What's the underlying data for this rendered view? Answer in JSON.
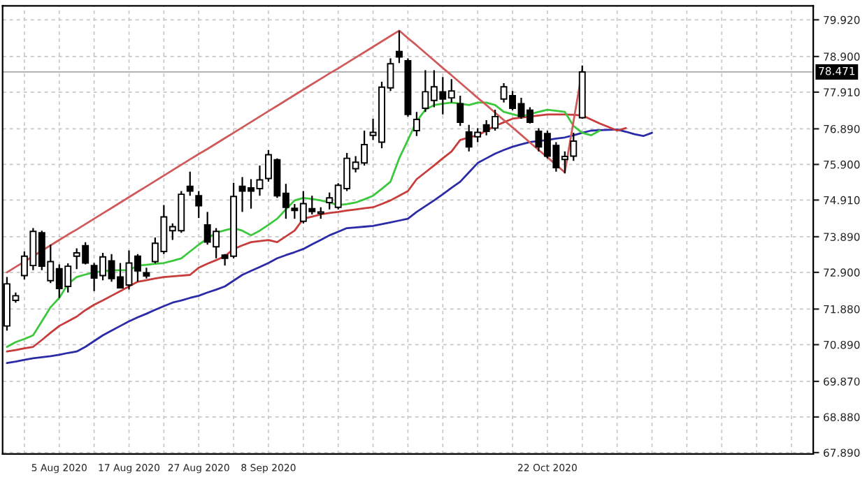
{
  "chart_data": {
    "type": "candlestick",
    "categories": [
      null,
      null,
      null,
      null,
      null,
      null,
      "5 Aug 2020",
      null,
      null,
      null,
      null,
      null,
      null,
      null,
      "17 Aug 2020",
      null,
      null,
      null,
      null,
      null,
      null,
      null,
      "27 Aug 2020",
      null,
      null,
      null,
      null,
      null,
      null,
      null,
      "8 Sep 2020",
      null,
      null,
      null,
      null,
      null,
      null,
      null,
      null,
      null,
      null,
      null,
      null,
      null,
      null,
      null,
      null,
      null,
      null,
      null,
      null,
      null,
      null,
      null,
      null,
      null,
      null,
      null,
      null,
      null,
      null,
      null,
      "22 Oct 2020",
      null,
      null,
      null,
      null,
      null,
      null,
      null,
      null,
      null,
      null,
      null,
      null,
      null,
      null,
      null,
      null,
      null,
      null,
      null,
      null,
      null,
      null,
      null,
      null,
      null,
      null,
      null,
      null,
      null,
      null
    ],
    "ohlc": [
      [
        71.41,
        72.77,
        71.28,
        72.58
      ],
      [
        72.12,
        72.34,
        72.06,
        72.25
      ],
      [
        72.81,
        73.48,
        72.7,
        73.35
      ],
      [
        73.09,
        74.13,
        72.96,
        74.04
      ],
      [
        74.0,
        74.06,
        72.96,
        73.07
      ],
      [
        72.67,
        73.67,
        72.6,
        73.2
      ],
      [
        73.0,
        73.12,
        72.19,
        72.45
      ],
      [
        72.51,
        73.15,
        72.34,
        73.07
      ],
      [
        73.35,
        73.57,
        72.99,
        73.44
      ],
      [
        73.64,
        73.74,
        73.12,
        73.16
      ],
      [
        73.09,
        73.16,
        72.38,
        72.74
      ],
      [
        72.81,
        73.44,
        72.68,
        73.33
      ],
      [
        73.22,
        73.41,
        72.64,
        72.73
      ],
      [
        72.77,
        73.16,
        72.45,
        72.47
      ],
      [
        72.55,
        73.51,
        72.42,
        73.16
      ],
      [
        73.35,
        73.41,
        72.64,
        72.94
      ],
      [
        72.89,
        73.03,
        72.73,
        72.8
      ],
      [
        73.2,
        73.87,
        73.15,
        73.71
      ],
      [
        73.48,
        74.77,
        73.41,
        74.44
      ],
      [
        74.06,
        74.26,
        73.8,
        74.17
      ],
      [
        74.06,
        75.16,
        74.0,
        75.07
      ],
      [
        75.29,
        75.7,
        75.03,
        75.16
      ],
      [
        75.03,
        75.16,
        74.41,
        74.75
      ],
      [
        74.22,
        74.58,
        73.67,
        73.74
      ],
      [
        73.61,
        74.13,
        73.29,
        74.04
      ],
      [
        73.38,
        73.41,
        73.09,
        73.29
      ],
      [
        73.35,
        75.39,
        73.29,
        75.01
      ],
      [
        75.29,
        75.55,
        74.58,
        75.16
      ],
      [
        75.25,
        75.49,
        74.67,
        75.16
      ],
      [
        75.23,
        75.87,
        75.03,
        75.47
      ],
      [
        75.51,
        76.3,
        75.42,
        76.17
      ],
      [
        76.03,
        76.07,
        74.97,
        75.03
      ],
      [
        75.1,
        75.36,
        74.39,
        74.71
      ],
      [
        74.68,
        74.8,
        74.39,
        74.62
      ],
      [
        74.32,
        75.16,
        74.26,
        74.81
      ],
      [
        74.67,
        75.03,
        74.51,
        74.59
      ],
      [
        74.54,
        74.71,
        74.39,
        74.58
      ],
      [
        74.84,
        75.12,
        74.65,
        74.97
      ],
      [
        74.71,
        75.38,
        74.65,
        75.32
      ],
      [
        75.23,
        76.22,
        75.16,
        76.07
      ],
      [
        75.78,
        76.13,
        75.68,
        75.96
      ],
      [
        75.94,
        76.84,
        75.87,
        76.45
      ],
      [
        76.71,
        77.17,
        76.58,
        76.79
      ],
      [
        76.52,
        78.2,
        76.35,
        78.05
      ],
      [
        78.03,
        78.85,
        77.94,
        78.7
      ],
      [
        79.04,
        79.62,
        78.72,
        78.89
      ],
      [
        78.78,
        78.85,
        77.23,
        77.29
      ],
      [
        76.84,
        77.36,
        76.69,
        77.15
      ],
      [
        77.46,
        78.52,
        77.36,
        77.92
      ],
      [
        77.68,
        78.52,
        77.49,
        78.06
      ],
      [
        77.92,
        78.33,
        77.29,
        77.72
      ],
      [
        77.75,
        78.27,
        77.62,
        77.94
      ],
      [
        77.59,
        77.81,
        76.97,
        77.07
      ],
      [
        76.8,
        77.0,
        76.26,
        76.39
      ],
      [
        76.67,
        76.91,
        76.52,
        76.79
      ],
      [
        77.0,
        77.13,
        76.71,
        76.82
      ],
      [
        76.91,
        77.42,
        76.84,
        77.23
      ],
      [
        77.72,
        78.16,
        77.62,
        78.06
      ],
      [
        77.81,
        77.94,
        77.41,
        77.46
      ],
      [
        77.59,
        77.75,
        77.17,
        77.23
      ],
      [
        77.41,
        77.49,
        77.04,
        77.07
      ],
      [
        76.82,
        76.91,
        76.26,
        76.39
      ],
      [
        76.76,
        76.84,
        76.07,
        76.13
      ],
      [
        76.43,
        76.52,
        75.7,
        75.81
      ],
      [
        76.04,
        76.26,
        75.65,
        76.12
      ],
      [
        76.13,
        76.78,
        76.0,
        76.55
      ],
      [
        77.2,
        78.65,
        77.17,
        78.471
      ],
      null,
      null,
      null,
      null,
      null,
      null,
      null,
      null,
      null,
      null,
      null,
      null,
      null,
      null,
      null,
      null,
      null,
      null,
      null,
      null,
      null,
      null,
      null,
      null,
      null,
      null
    ],
    "series": [
      {
        "type": "line",
        "color": "#2b2ba8",
        "values": [
          70.38,
          70.42,
          70.47,
          70.51,
          70.54,
          70.57,
          70.61,
          70.66,
          70.7,
          70.83,
          70.99,
          71.15,
          71.28,
          71.41,
          71.54,
          71.65,
          71.75,
          71.86,
          71.96,
          72.06,
          72.12,
          72.19,
          72.25,
          72.34,
          72.42,
          72.51,
          72.67,
          72.83,
          72.94,
          73.05,
          73.16,
          73.29,
          73.38,
          73.46,
          73.55,
          73.68,
          73.8,
          73.93,
          74.03,
          74.13,
          74.15,
          74.17,
          74.19,
          74.24,
          74.29,
          74.34,
          74.39,
          74.58,
          74.74,
          74.9,
          75.07,
          75.25,
          75.42,
          75.68,
          75.94,
          76.07,
          76.2,
          76.3,
          76.39,
          76.46,
          76.52,
          76.55,
          76.58,
          76.62,
          76.65,
          76.71,
          76.78,
          76.84,
          76.85,
          76.86,
          76.87,
          76.81,
          76.74,
          76.69,
          76.78,
          null,
          null,
          null,
          null,
          null,
          null,
          null,
          null,
          null,
          null,
          null,
          null,
          null,
          null,
          null,
          null,
          null,
          null
        ]
      },
      {
        "type": "line",
        "color": "#c83c3c",
        "values": [
          70.7,
          70.74,
          70.79,
          70.83,
          71.02,
          71.22,
          71.41,
          71.54,
          71.67,
          71.85,
          72.0,
          72.12,
          72.25,
          72.38,
          72.51,
          72.64,
          72.68,
          72.73,
          72.77,
          72.79,
          72.81,
          72.83,
          73.03,
          73.14,
          73.24,
          73.35,
          73.55,
          73.65,
          73.74,
          73.77,
          73.8,
          73.74,
          73.9,
          74.06,
          74.39,
          74.45,
          74.51,
          74.55,
          74.58,
          74.62,
          74.65,
          74.68,
          74.71,
          74.8,
          74.9,
          75.03,
          75.16,
          75.49,
          75.68,
          75.87,
          76.07,
          76.26,
          76.58,
          76.65,
          76.71,
          76.84,
          76.97,
          77.07,
          77.17,
          77.2,
          77.23,
          77.26,
          77.29,
          77.29,
          77.29,
          77.28,
          77.26,
          77.15,
          77.04,
          76.94,
          76.84,
          76.91,
          null,
          null,
          null,
          null,
          null,
          null,
          null,
          null,
          null,
          null,
          null,
          null,
          null,
          null,
          null,
          null,
          null,
          null,
          null,
          null,
          null
        ]
      },
      {
        "type": "line",
        "color": "#3cc83c",
        "values": [
          70.83,
          70.96,
          71.05,
          71.15,
          71.54,
          71.93,
          72.19,
          72.58,
          72.77,
          72.84,
          72.9,
          72.93,
          72.96,
          72.96,
          72.96,
          73.09,
          73.11,
          73.14,
          73.16,
          73.22,
          73.29,
          73.48,
          73.67,
          73.84,
          74.0,
          74.07,
          74.13,
          74.06,
          73.93,
          74.06,
          74.22,
          74.39,
          74.65,
          74.9,
          74.97,
          74.94,
          74.9,
          74.84,
          74.77,
          74.8,
          74.84,
          74.93,
          75.03,
          75.22,
          75.42,
          76.07,
          76.58,
          77.1,
          77.42,
          77.55,
          77.59,
          77.62,
          77.59,
          77.55,
          77.62,
          77.62,
          77.55,
          77.36,
          77.3,
          77.23,
          77.3,
          77.36,
          77.42,
          77.39,
          77.36,
          76.97,
          76.78,
          76.71,
          76.84,
          null,
          null,
          null,
          null,
          null,
          null,
          null,
          null,
          null,
          null,
          null,
          null,
          null,
          null,
          null,
          null,
          null,
          null,
          null,
          null,
          null,
          null,
          null,
          null
        ]
      },
      {
        "type": "line",
        "color": "#d05a5a",
        "values": [
          72.9,
          73.05,
          73.2,
          73.35,
          73.5,
          73.65,
          73.8,
          73.95,
          74.09,
          74.24,
          74.39,
          74.54,
          74.69,
          74.84,
          74.99,
          75.14,
          75.29,
          75.44,
          75.59,
          75.74,
          75.89,
          76.04,
          76.19,
          76.33,
          76.48,
          76.63,
          76.78,
          76.93,
          77.08,
          77.23,
          77.38,
          77.53,
          77.68,
          77.83,
          77.98,
          78.13,
          78.28,
          78.43,
          78.57,
          78.72,
          78.87,
          79.02,
          79.17,
          79.32,
          79.47,
          79.62,
          79.41,
          79.21,
          79.0,
          78.79,
          78.58,
          78.38,
          78.17,
          77.96,
          77.75,
          77.55,
          77.34,
          77.13,
          76.93,
          76.72,
          76.51,
          76.3,
          76.1,
          75.89,
          75.68,
          77.1,
          78.52,
          null,
          null,
          null,
          null,
          null,
          null,
          null,
          null,
          null,
          null,
          null,
          null,
          null,
          null,
          null,
          null,
          null,
          null,
          null,
          null,
          null,
          null,
          null,
          null,
          null,
          null
        ]
      }
    ],
    "ylim": [
      67.85,
      80.31
    ],
    "yticks": [
      {
        "value": 67.89,
        "label": "67.890"
      },
      {
        "value": 68.88,
        "label": "68.880"
      },
      {
        "value": 69.87,
        "label": "69.870"
      },
      {
        "value": 70.89,
        "label": "70.890"
      },
      {
        "value": 71.88,
        "label": "71.880"
      },
      {
        "value": 72.9,
        "label": "72.900"
      },
      {
        "value": 73.89,
        "label": "73.890"
      },
      {
        "value": 74.91,
        "label": "74.910"
      },
      {
        "value": 75.9,
        "label": "75.900"
      },
      {
        "value": 76.89,
        "label": "76.890"
      },
      {
        "value": 77.91,
        "label": "77.910"
      },
      {
        "value": 78.9,
        "label": "78.900"
      },
      {
        "value": 79.92,
        "label": "79.920"
      }
    ],
    "ref_lines": [
      {
        "axis": "y",
        "value": 78.471,
        "label": "78.471",
        "color": "#b4b4b4"
      }
    ],
    "grid": true
  }
}
